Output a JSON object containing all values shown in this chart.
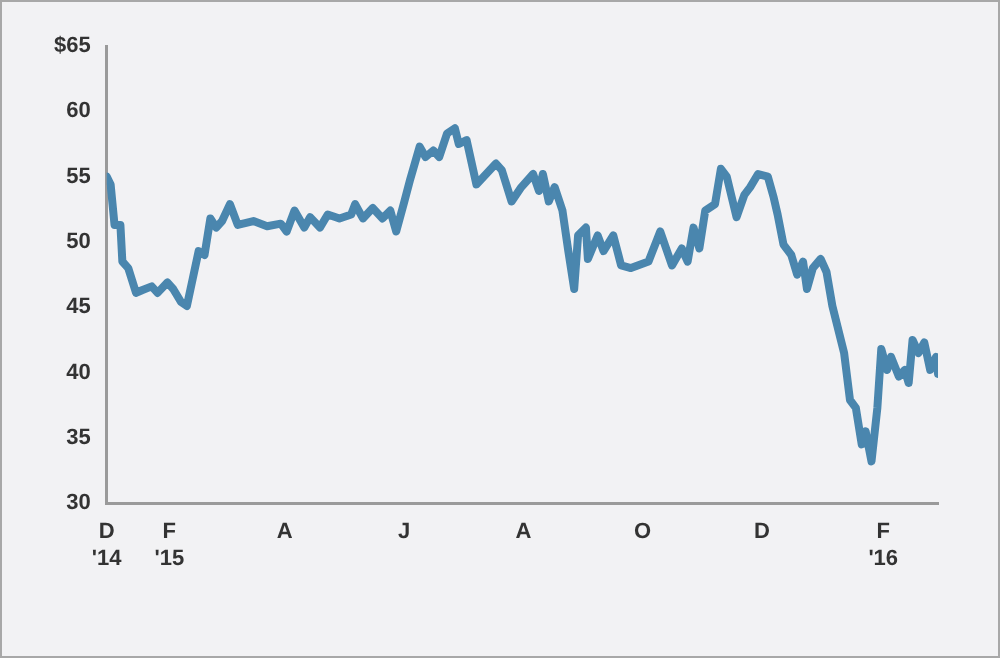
{
  "chart_data": {
    "type": "line",
    "x": [
      "2014-12-31",
      "2015-01-02",
      "2015-01-04",
      "2015-01-07",
      "2015-01-08",
      "2015-01-11",
      "2015-01-15",
      "2015-01-18",
      "2015-01-23",
      "2015-01-26",
      "2015-01-31",
      "2015-02-03",
      "2015-02-07",
      "2015-02-10",
      "2015-02-13",
      "2015-02-16",
      "2015-02-19",
      "2015-02-22",
      "2015-02-25",
      "2015-02-28",
      "2015-03-04",
      "2015-03-08",
      "2015-03-16",
      "2015-03-23",
      "2015-03-30",
      "2015-04-02",
      "2015-04-06",
      "2015-04-11",
      "2015-04-14",
      "2015-04-19",
      "2015-04-23",
      "2015-04-29",
      "2015-05-05",
      "2015-05-07",
      "2015-05-11",
      "2015-05-16",
      "2015-05-21",
      "2015-05-25",
      "2015-05-28",
      "2015-06-01",
      "2015-06-04",
      "2015-06-09",
      "2015-06-12",
      "2015-06-16",
      "2015-06-19",
      "2015-06-23",
      "2015-06-27",
      "2015-06-29",
      "2015-07-03",
      "2015-07-08",
      "2015-07-13",
      "2015-07-18",
      "2015-07-21",
      "2015-07-26",
      "2015-07-31",
      "2015-08-06",
      "2015-08-09",
      "2015-08-11",
      "2015-08-14",
      "2015-08-17",
      "2015-08-21",
      "2015-08-24",
      "2015-08-27",
      "2015-08-29",
      "2015-09-02",
      "2015-09-03",
      "2015-09-08",
      "2015-09-11",
      "2015-09-16",
      "2015-09-20",
      "2015-09-25",
      "2015-10-04",
      "2015-10-10",
      "2015-10-16",
      "2015-10-21",
      "2015-10-24",
      "2015-10-27",
      "2015-10-30",
      "2015-11-02",
      "2015-11-07",
      "2015-11-10",
      "2015-11-13",
      "2015-11-18",
      "2015-11-22",
      "2015-11-25",
      "2015-11-29",
      "2015-12-04",
      "2015-12-07",
      "2015-12-09",
      "2015-12-12",
      "2015-12-16",
      "2015-12-19",
      "2015-12-22",
      "2015-12-24",
      "2015-12-27",
      "2015-12-31",
      "2016-01-03",
      "2016-01-06",
      "2016-01-12",
      "2016-01-15",
      "2016-01-18",
      "2016-01-21",
      "2016-01-23",
      "2016-01-26",
      "2016-01-29",
      "2016-01-31",
      "2016-02-03",
      "2016-02-05",
      "2016-02-09",
      "2016-02-12",
      "2016-02-14",
      "2016-02-16",
      "2016-02-19",
      "2016-02-22",
      "2016-02-25",
      "2016-02-28",
      "2016-02-29"
    ],
    "series": [
      {
        "color": "#4a86ae",
        "values": [
          55.0,
          54.4,
          51.3,
          51.3,
          48.5,
          48.0,
          46.1,
          46.3,
          46.6,
          46.1,
          46.9,
          46.4,
          45.4,
          45.1,
          47.2,
          49.3,
          49.0,
          51.8,
          51.1,
          51.6,
          52.9,
          51.3,
          51.6,
          51.2,
          51.4,
          50.8,
          52.4,
          51.1,
          51.9,
          51.1,
          52.1,
          51.8,
          52.1,
          52.9,
          51.8,
          52.6,
          51.8,
          52.4,
          50.8,
          53.0,
          54.7,
          57.3,
          56.5,
          57.0,
          56.5,
          58.3,
          58.7,
          57.5,
          57.8,
          54.4,
          55.2,
          56.0,
          55.5,
          53.1,
          54.2,
          55.2,
          53.9,
          55.2,
          53.1,
          54.2,
          52.4,
          49.3,
          46.4,
          50.5,
          51.1,
          48.7,
          50.5,
          49.3,
          50.5,
          48.2,
          48.0,
          48.5,
          50.8,
          48.2,
          49.5,
          48.5,
          51.1,
          49.5,
          52.4,
          52.9,
          55.6,
          55.0,
          51.9,
          53.6,
          54.2,
          55.2,
          55.0,
          53.4,
          52.1,
          49.8,
          49.0,
          47.5,
          48.5,
          46.4,
          48.0,
          48.7,
          47.7,
          45.1,
          41.5,
          37.9,
          37.3,
          34.5,
          35.5,
          33.2,
          37.3,
          41.8,
          40.2,
          41.2,
          39.7,
          40.2,
          39.2,
          42.5,
          41.5,
          42.3,
          40.2,
          41.2,
          39.9
        ]
      }
    ],
    "xlim": [
      "2014-12-31",
      "2016-02-29"
    ],
    "xticks": [
      {
        "value": "2014-12-31",
        "label": "D '14"
      },
      {
        "value": "2015-02-01",
        "label": "F '15"
      },
      {
        "value": "2015-04-01",
        "label": "A"
      },
      {
        "value": "2015-06-01",
        "label": "J"
      },
      {
        "value": "2015-08-01",
        "label": "A"
      },
      {
        "value": "2015-10-01",
        "label": "O"
      },
      {
        "value": "2015-12-01",
        "label": "D"
      },
      {
        "value": "2016-02-01",
        "label": "F '16"
      }
    ],
    "ylim": [
      30,
      65
    ],
    "yticks": [
      30,
      35,
      40,
      45,
      50,
      55,
      60,
      {
        "value": 65,
        "label": "$65"
      }
    ],
    "grid": false,
    "legend": false,
    "marker": "none",
    "line_style": "solid"
  }
}
